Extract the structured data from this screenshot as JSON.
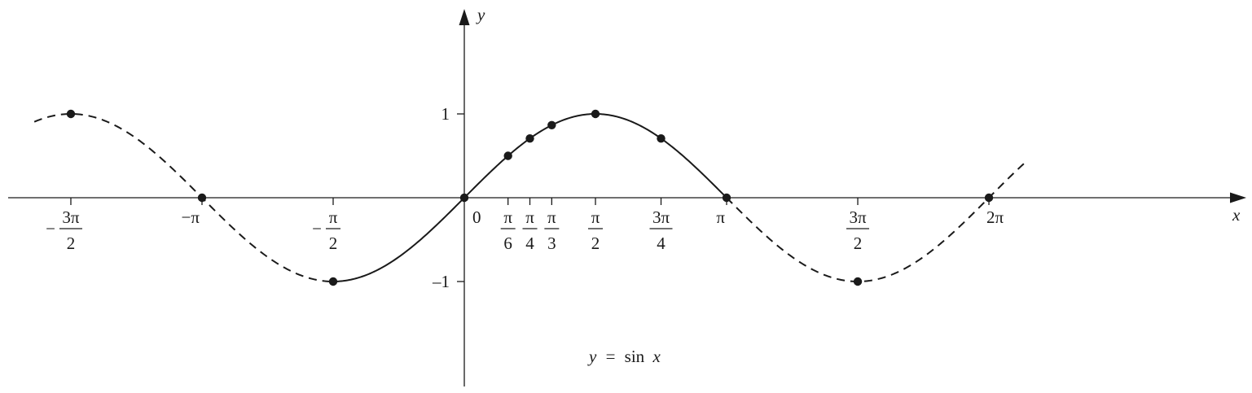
{
  "chart_data": {
    "type": "line",
    "title": "",
    "xlabel": "x",
    "ylabel": "y",
    "equation": {
      "lhs": "y",
      "eq": "=",
      "rhs": "sin",
      "var": "x"
    },
    "xlim": [
      -5.15,
      6.38
    ],
    "ylim": [
      -2.2,
      2.0
    ],
    "grid": false,
    "series": [
      {
        "style": "solid",
        "domain": [
          -1.5708,
          3.1416
        ],
        "fn": "sin"
      },
      {
        "style": "dashed",
        "domain": [
          -5.15,
          -1.5708
        ],
        "fn": "sin"
      },
      {
        "style": "dashed",
        "domain": [
          3.1416,
          6.72
        ],
        "fn": "sin"
      }
    ],
    "points": [
      {
        "x": -4.7124,
        "y": 1
      },
      {
        "x": -3.1416,
        "y": 0
      },
      {
        "x": -1.5708,
        "y": -1
      },
      {
        "x": 0,
        "y": 0
      },
      {
        "x": 0.5236,
        "y": 0.5
      },
      {
        "x": 0.7854,
        "y": 0.7071
      },
      {
        "x": 1.0472,
        "y": 0.866
      },
      {
        "x": 1.5708,
        "y": 1
      },
      {
        "x": 2.3562,
        "y": 0.7071
      },
      {
        "x": 3.1416,
        "y": 0
      },
      {
        "x": 4.7124,
        "y": -1
      },
      {
        "x": 6.2832,
        "y": 0
      }
    ],
    "x_ticks": [
      {
        "value": -4.7124,
        "sign": "−",
        "num": "3π",
        "den": "2"
      },
      {
        "value": -3.1416,
        "text": "−π"
      },
      {
        "value": -1.5708,
        "sign": "−",
        "num": "π",
        "den": "2"
      },
      {
        "value": 0,
        "text": "0"
      },
      {
        "value": 0.5236,
        "num": "π",
        "den": "6"
      },
      {
        "value": 0.7854,
        "num": "π",
        "den": "4"
      },
      {
        "value": 1.0472,
        "num": "π",
        "den": "3"
      },
      {
        "value": 1.5708,
        "num": "π",
        "den": "2"
      },
      {
        "value": 2.3562,
        "num": "3π",
        "den": "4"
      },
      {
        "value": 3.1416,
        "text": "π"
      },
      {
        "value": 4.7124,
        "num": "3π",
        "den": "2"
      },
      {
        "value": 6.2832,
        "text": "2π"
      }
    ],
    "y_ticks": [
      {
        "value": 1,
        "text": "1"
      },
      {
        "value": -1,
        "text": "–1"
      }
    ]
  }
}
